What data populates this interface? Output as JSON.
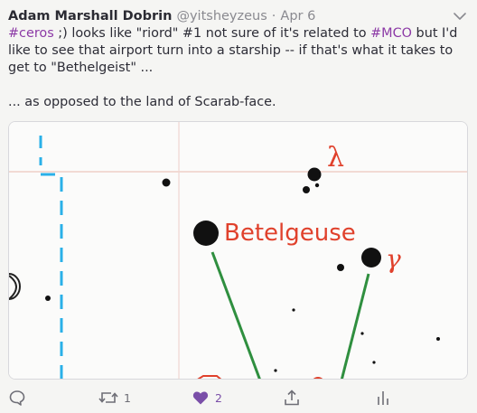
{
  "post": {
    "author": "Adam Marshall Dobrin",
    "handle": "@yitsheyzeus",
    "separator": "·",
    "date": "Apr 6",
    "text": {
      "tag1": "#ceros",
      "part1": " ;) looks like \"riord\" #1 not sure of it's related to ",
      "tag2": "#MCO",
      "part2": " but I'd like to see that airport turn into a starship -- if that's what it takes to get to \"Bethelgeist\" ...",
      "paragraph2": "... as opposed to the land of Scarab-face."
    }
  },
  "image": {
    "label_betelgeuse": "Betelgeuse",
    "label_gamma": "γ",
    "label_lambda": "λ"
  },
  "actions": {
    "reply_icon": "speech-bubble-icon",
    "retweet_icon": "retweet-icon",
    "retweet_count": "1",
    "like_icon": "heart-icon",
    "like_count": "2",
    "share_icon": "share-icon",
    "stats_icon": "bar-chart-icon"
  },
  "colors": {
    "hashtag": "#8c3aa6",
    "like": "#7a4fa8",
    "label_red": "#e0412c",
    "line_green": "#2f8f3f",
    "dashed_blue": "#2ab0e8"
  }
}
